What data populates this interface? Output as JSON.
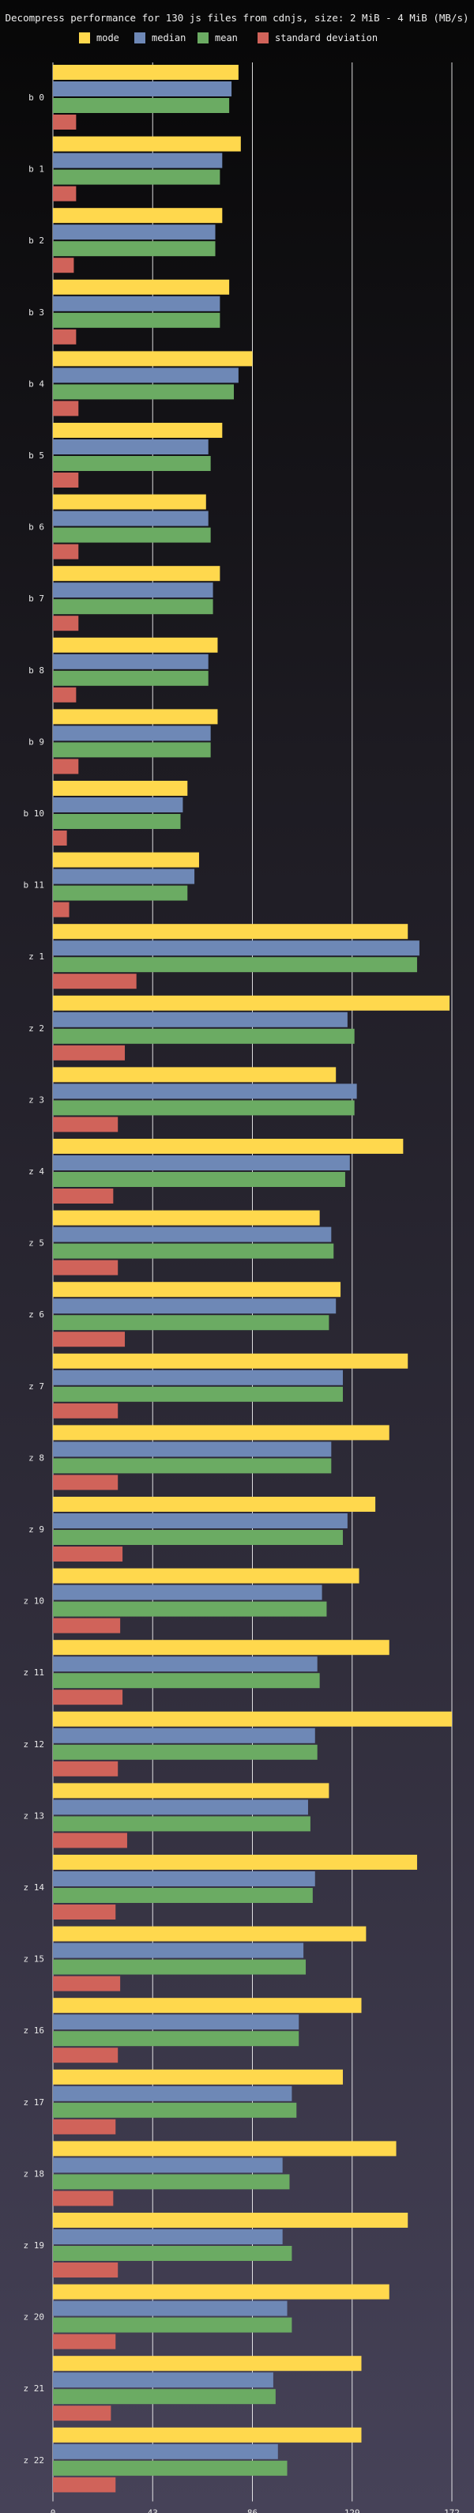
{
  "chart_data": {
    "type": "bar",
    "orientation": "horizontal",
    "title": "Decompress performance for 130 js files from cdnjs, size: 2 MiB - 4 MiB (MB/s)",
    "xlabel": "",
    "ylabel": "",
    "xlim": [
      0,
      172
    ],
    "xticks": [
      "0",
      "43",
      "86",
      "129",
      "172"
    ],
    "grid": "vertical",
    "legend_position": "top",
    "categories": [
      "b 0",
      "b 1",
      "b 2",
      "b 3",
      "b 4",
      "b 5",
      "b 6",
      "b 7",
      "b 8",
      "b 9",
      "b 10",
      "b 11",
      "z 1",
      "z 2",
      "z 3",
      "z 4",
      "z 5",
      "z 6",
      "z 7",
      "z 8",
      "z 9",
      "z 10",
      "z 11",
      "z 12",
      "z 13",
      "z 14",
      "z 15",
      "z 16",
      "z 17",
      "z 18",
      "z 19",
      "z 20",
      "z 21",
      "z 22"
    ],
    "series": [
      {
        "name": "mode",
        "color": "#ffd84d",
        "values": [
          80,
          81,
          73,
          76,
          86,
          73,
          66,
          72,
          71,
          71,
          58,
          63,
          153,
          171,
          122,
          151,
          115,
          124,
          153,
          145,
          139,
          132,
          145,
          172,
          119,
          157,
          135,
          133,
          125,
          148,
          153,
          145,
          133,
          133
        ]
      },
      {
        "name": "median",
        "color": "#6e88b6",
        "values": [
          77,
          73,
          70,
          72,
          80,
          67,
          67,
          69,
          67,
          68,
          56,
          61,
          158,
          127,
          131,
          128,
          120,
          122,
          125,
          120,
          127,
          116,
          114,
          113,
          110,
          113,
          108,
          106,
          103,
          99,
          99,
          101,
          95,
          97
        ]
      },
      {
        "name": "mean",
        "color": "#6bab63",
        "values": [
          76,
          72,
          70,
          72,
          78,
          68,
          68,
          69,
          67,
          68,
          55,
          58,
          157,
          130,
          130,
          126,
          121,
          119,
          125,
          120,
          125,
          118,
          115,
          114,
          111,
          112,
          109,
          106,
          105,
          102,
          103,
          103,
          96,
          101
        ]
      },
      {
        "name": "standard deviation",
        "color": "#d0635a",
        "values": [
          10,
          10,
          9,
          10,
          11,
          11,
          11,
          11,
          10,
          11,
          6,
          7,
          36,
          31,
          28,
          26,
          28,
          31,
          28,
          28,
          30,
          29,
          30,
          28,
          32,
          27,
          29,
          28,
          27,
          26,
          28,
          27,
          25,
          27
        ]
      }
    ]
  }
}
